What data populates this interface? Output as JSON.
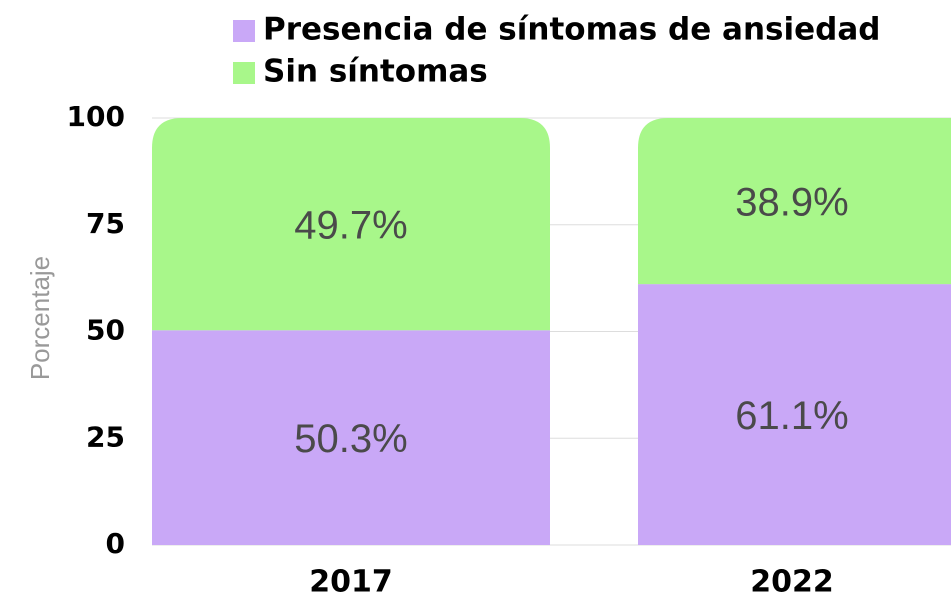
{
  "chart_data": {
    "type": "stacked_bar",
    "y_label": "Porcentaje",
    "categories": [
      "2017",
      "2022"
    ],
    "series": [
      {
        "name": "Presencia de síntomas de ansiedad",
        "color": "#c9a8f7",
        "values": [
          50.3,
          61.1
        ],
        "value_labels": [
          "50.3%",
          "61.1%"
        ]
      },
      {
        "name": "Sin síntomas",
        "color": "#a8f78a",
        "values": [
          49.7,
          38.9
        ],
        "value_labels": [
          "49.7%",
          "38.9%"
        ]
      }
    ],
    "ylim": [
      0,
      100
    ],
    "yticks": [
      0,
      25,
      50,
      75,
      100
    ],
    "grid": true
  }
}
